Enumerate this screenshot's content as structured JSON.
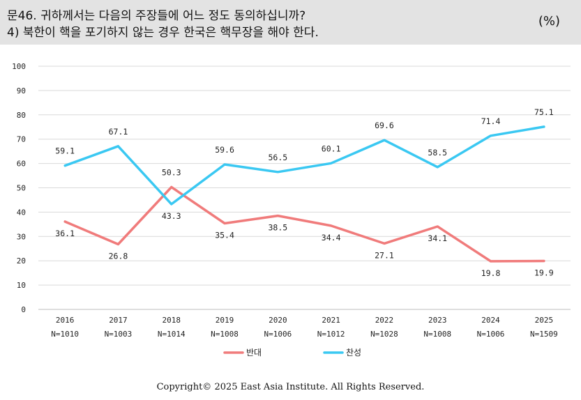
{
  "header": {
    "question_line1": "문46. 귀하께서는 다음의 주장들에 어느 정도 동의하십니까?",
    "question_line2": "4) 북한이 핵을 포기하지 않는 경우 한국은 핵무장을 해야 한다.",
    "unit": "(%)"
  },
  "chart_data": {
    "type": "line",
    "categories": [
      "2016",
      "2017",
      "2018",
      "2019",
      "2020",
      "2021",
      "2022",
      "2023",
      "2024",
      "2025"
    ],
    "sample_sizes": [
      "N=1010",
      "N=1003",
      "N=1014",
      "N=1008",
      "N=1006",
      "N=1012",
      "N=1028",
      "N=1008",
      "N=1006",
      "N=1509"
    ],
    "series": [
      {
        "name": "반대",
        "color": "#f07b7b",
        "values": [
          36.1,
          26.8,
          50.3,
          35.4,
          38.5,
          34.4,
          27.1,
          34.1,
          19.8,
          19.9
        ]
      },
      {
        "name": "찬성",
        "color": "#3ac8f2",
        "values": [
          59.1,
          67.1,
          43.3,
          59.6,
          56.5,
          60.1,
          69.6,
          58.5,
          71.4,
          75.1
        ]
      }
    ],
    "ylim": [
      0,
      100
    ],
    "yticks": [
      0,
      10,
      20,
      30,
      40,
      50,
      60,
      70,
      80,
      90,
      100
    ],
    "grid": true,
    "legend_position": "bottom"
  },
  "footer": {
    "copyright": "Copyright© 2025 East Asia Institute. All Rights Reserved."
  }
}
